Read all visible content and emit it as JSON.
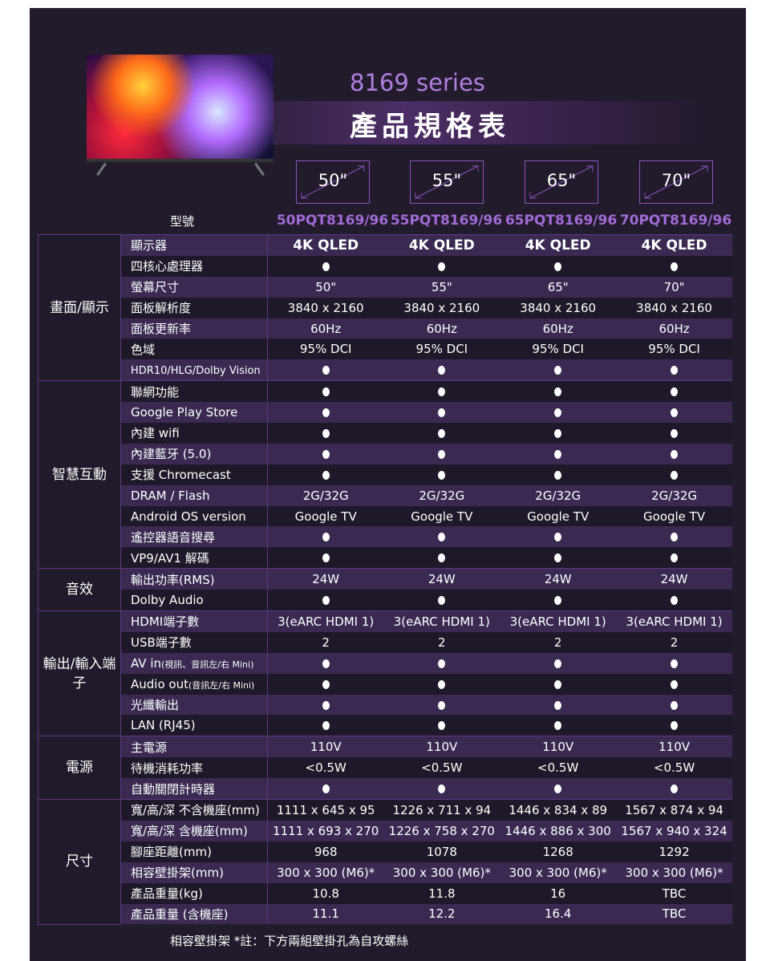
{
  "header": {
    "series": "8169 series",
    "title": "產品規格表"
  },
  "sizes": [
    "50\"",
    "55\"",
    "65\"",
    "70\""
  ],
  "model_label": "型號",
  "models": [
    "50PQT8169/96",
    "55PQT8169/96",
    "65PQT8169/96",
    "70PQT8169/96"
  ],
  "groups": [
    {
      "name": "畫面/顯示",
      "rows": [
        {
          "label": "顯示器",
          "values": [
            "4K QLED",
            "4K QLED",
            "4K QLED",
            "4K QLED"
          ],
          "bold": true
        },
        {
          "label": "四核心處理器",
          "values": [
            "●",
            "●",
            "●",
            "●"
          ]
        },
        {
          "label": "螢幕尺寸",
          "values": [
            "50\"",
            "55\"",
            "65\"",
            "70\""
          ]
        },
        {
          "label": "面板解析度",
          "values": [
            "3840 x 2160",
            "3840 x 2160",
            "3840 x 2160",
            "3840 x 2160"
          ]
        },
        {
          "label": "面板更新率",
          "values": [
            "60Hz",
            "60Hz",
            "60Hz",
            "60Hz"
          ]
        },
        {
          "label": "色域",
          "values": [
            "95% DCI",
            "95% DCI",
            "95% DCI",
            "95% DCI"
          ]
        },
        {
          "label": "HDR10/HLG/Dolby Vision",
          "values": [
            "●",
            "●",
            "●",
            "●"
          ],
          "small": true
        }
      ]
    },
    {
      "name": "智慧互動",
      "rows": [
        {
          "label": "聯網功能",
          "values": [
            "●",
            "●",
            "●",
            "●"
          ]
        },
        {
          "label": "Google Play  Store",
          "values": [
            "●",
            "●",
            "●",
            "●"
          ]
        },
        {
          "label": "內建 wifi",
          "values": [
            "●",
            "●",
            "●",
            "●"
          ]
        },
        {
          "label": "內建藍牙 (5.0)",
          "values": [
            "●",
            "●",
            "●",
            "●"
          ]
        },
        {
          "label": "支援 Chromecast",
          "values": [
            "●",
            "●",
            "●",
            "●"
          ]
        },
        {
          "label": "DRAM / Flash",
          "values": [
            "2G/32G",
            "2G/32G",
            "2G/32G",
            "2G/32G"
          ]
        },
        {
          "label": "Android OS version",
          "values": [
            "Google TV",
            "Google TV",
            "Google TV",
            "Google TV"
          ]
        },
        {
          "label": "遙控器語音搜尋",
          "values": [
            "●",
            "●",
            "●",
            "●"
          ]
        },
        {
          "label": "VP9/AV1 解碼",
          "values": [
            "●",
            "●",
            "●",
            "●"
          ]
        }
      ]
    },
    {
      "name": "音效",
      "rows": [
        {
          "label": "輸出功率(RMS)",
          "values": [
            "24W",
            "24W",
            "24W",
            "24W"
          ]
        },
        {
          "label": "Dolby Audio",
          "values": [
            "●",
            "●",
            "●",
            "●"
          ]
        }
      ]
    },
    {
      "name": "輸出/輸入端子",
      "rows": [
        {
          "label": "HDMI端子數",
          "values": [
            "3(eARC HDMI 1)",
            "3(eARC HDMI 1)",
            "3(eARC HDMI 1)",
            "3(eARC HDMI 1)"
          ]
        },
        {
          "label": "USB端子數",
          "values": [
            "2",
            "2",
            "2",
            "2"
          ]
        },
        {
          "label": "AV in",
          "sub": "(視訊、音訊左/右 Mini)",
          "values": [
            "●",
            "●",
            "●",
            "●"
          ]
        },
        {
          "label": "Audio out",
          "sub": "(音訊左/右 Mini)",
          "values": [
            "●",
            "●",
            "●",
            "●"
          ]
        },
        {
          "label": "光纖輸出",
          "values": [
            "●",
            "●",
            "●",
            "●"
          ]
        },
        {
          "label": "LAN (RJ45)",
          "values": [
            "●",
            "●",
            "●",
            "●"
          ]
        }
      ]
    },
    {
      "name": "電源",
      "rows": [
        {
          "label": "主電源",
          "values": [
            "110V",
            "110V",
            "110V",
            "110V"
          ]
        },
        {
          "label": "待機消耗功率",
          "values": [
            "<0.5W",
            "<0.5W",
            "<0.5W",
            "<0.5W"
          ]
        },
        {
          "label": "自動關閉計時器",
          "values": [
            "●",
            "●",
            "●",
            "●"
          ]
        }
      ]
    },
    {
      "name": "尺寸",
      "rows": [
        {
          "label": "寬/高/深 不含機座(mm)",
          "values": [
            "1111 x 645 x 95",
            "1226 x 711 x 94",
            "1446 x 834 x 89",
            "1567 x 874 x 94"
          ]
        },
        {
          "label": "寬/高/深 含機座(mm)",
          "values": [
            "1111 x 693 x 270",
            "1226 x 758 x 270",
            "1446 x 886 x 300",
            "1567 x 940 x 324"
          ]
        },
        {
          "label": "腳座距離(mm)",
          "values": [
            "968",
            "1078",
            "1268",
            "1292"
          ]
        },
        {
          "label": "相容壁掛架(mm)",
          "values": [
            "300 x 300 (M6)*",
            "300 x 300 (M6)*",
            "300 x 300 (M6)*",
            "300 x 300 (M6)*"
          ]
        },
        {
          "label": "產品重量(kg)",
          "values": [
            "10.8",
            "11.8",
            "16",
            "TBC"
          ]
        },
        {
          "label": "產品重量 (含機座)",
          "values": [
            "11.1",
            "12.2",
            "16.4",
            "TBC"
          ]
        }
      ]
    }
  ],
  "footnote": "相容壁掛架 *註：下方兩組壁掛孔為自攻螺絲"
}
